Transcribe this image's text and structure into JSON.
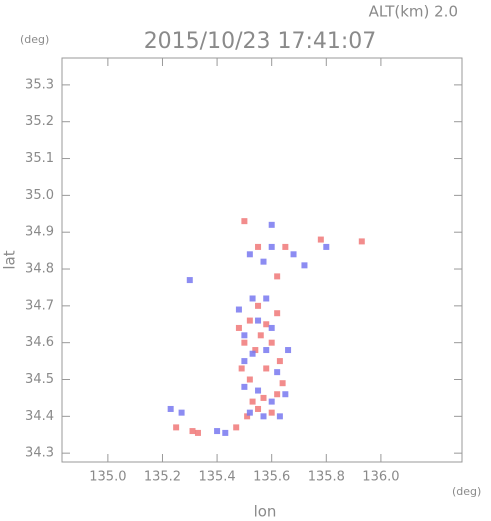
{
  "chart_data": {
    "type": "scatter",
    "title": "2015/10/23 17:41:07",
    "subtitle": "ALT(km) 2.0",
    "y_unit": "(deg)",
    "x_unit": "(deg)",
    "x_label": "lon",
    "y_label": "lat",
    "xlim": [
      134.832,
      136.297
    ],
    "ylim": [
      34.276,
      35.373
    ],
    "xticks": [
      {
        "value": 135,
        "label": "135.0"
      },
      135.2,
      135.4,
      135.6,
      135.8,
      {
        "value": 136,
        "label": "136.0"
      }
    ],
    "yticks": [
      34.3,
      34.4,
      34.5,
      34.6,
      34.7,
      34.8,
      34.9,
      {
        "value": 35,
        "label": "35.0"
      },
      35.1,
      35.2,
      35.3
    ],
    "series": [
      {
        "color": "#f07878",
        "x": [
          135.25,
          135.31,
          135.33,
          135.47,
          135.5,
          135.55,
          135.62,
          135.65,
          135.93,
          135.78,
          135.52,
          135.55,
          135.58,
          135.5,
          135.54,
          135.6,
          135.52,
          135.57,
          135.55,
          135.6,
          135.62,
          135.49,
          135.58,
          135.64,
          135.53,
          135.62,
          135.48,
          135.56,
          135.63,
          135.51
        ],
        "y": [
          34.37,
          34.36,
          34.355,
          34.37,
          34.93,
          34.86,
          34.78,
          34.86,
          34.875,
          34.88,
          34.66,
          34.7,
          34.65,
          34.6,
          34.58,
          34.6,
          34.5,
          34.45,
          34.42,
          34.41,
          34.46,
          34.53,
          34.53,
          34.49,
          34.44,
          34.68,
          34.64,
          34.62,
          34.55,
          34.4
        ]
      },
      {
        "color": "#7878f0",
        "x": [
          135.23,
          135.27,
          135.4,
          135.43,
          135.3,
          135.6,
          135.6,
          135.52,
          135.68,
          135.72,
          135.8,
          135.57,
          135.53,
          135.58,
          135.48,
          135.55,
          135.6,
          135.5,
          135.53,
          135.58,
          135.62,
          135.5,
          135.55,
          135.6,
          135.65,
          135.52,
          135.57,
          135.63,
          135.5,
          135.66
        ],
        "y": [
          34.42,
          34.41,
          34.36,
          34.355,
          34.77,
          34.92,
          34.86,
          34.84,
          34.84,
          34.81,
          34.86,
          34.82,
          34.72,
          34.72,
          34.69,
          34.66,
          34.64,
          34.62,
          34.57,
          34.58,
          34.52,
          34.48,
          34.47,
          34.44,
          34.46,
          34.41,
          34.4,
          34.4,
          34.55,
          34.58
        ]
      }
    ]
  }
}
